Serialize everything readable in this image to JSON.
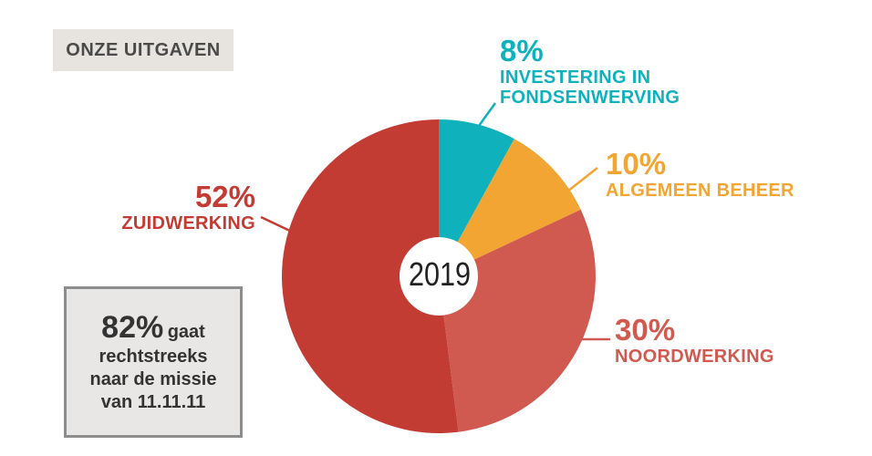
{
  "header": {
    "title": "ONZE UITGAVEN"
  },
  "chart_data": {
    "type": "pie",
    "center_label": "2019",
    "slices": [
      {
        "label": "INVESTERING IN FONDSENWERVING",
        "value": 8,
        "value_label": "8%",
        "color": "#0fb1bd"
      },
      {
        "label": "ALGEMEEN BEHEER",
        "value": 10,
        "value_label": "10%",
        "color": "#f2a533"
      },
      {
        "label": "NOORDWERKING",
        "value": 30,
        "value_label": "30%",
        "color": "#d05a4f"
      },
      {
        "label": "ZUIDWERKING",
        "value": 52,
        "value_label": "52%",
        "color": "#c33c34"
      }
    ]
  },
  "labels": {
    "fondsenwerving": {
      "pct": "8%",
      "line1": "INVESTERING IN",
      "line2": "FONDSENWERVING",
      "color": "#0fb1bd"
    },
    "beheer": {
      "pct": "10%",
      "name": "ALGEMEEN BEHEER",
      "color": "#f2a533"
    },
    "noord": {
      "pct": "30%",
      "name": "NOORDWERKING",
      "color": "#d05a4f"
    },
    "zuid": {
      "pct": "52%",
      "name": "ZUIDWERKING",
      "color": "#c33c34"
    }
  },
  "callout": {
    "big": "82%",
    "small": "gaat",
    "line1": "rechtstreeks",
    "line2": "naar de missie",
    "line3": "van 11.11.11"
  }
}
